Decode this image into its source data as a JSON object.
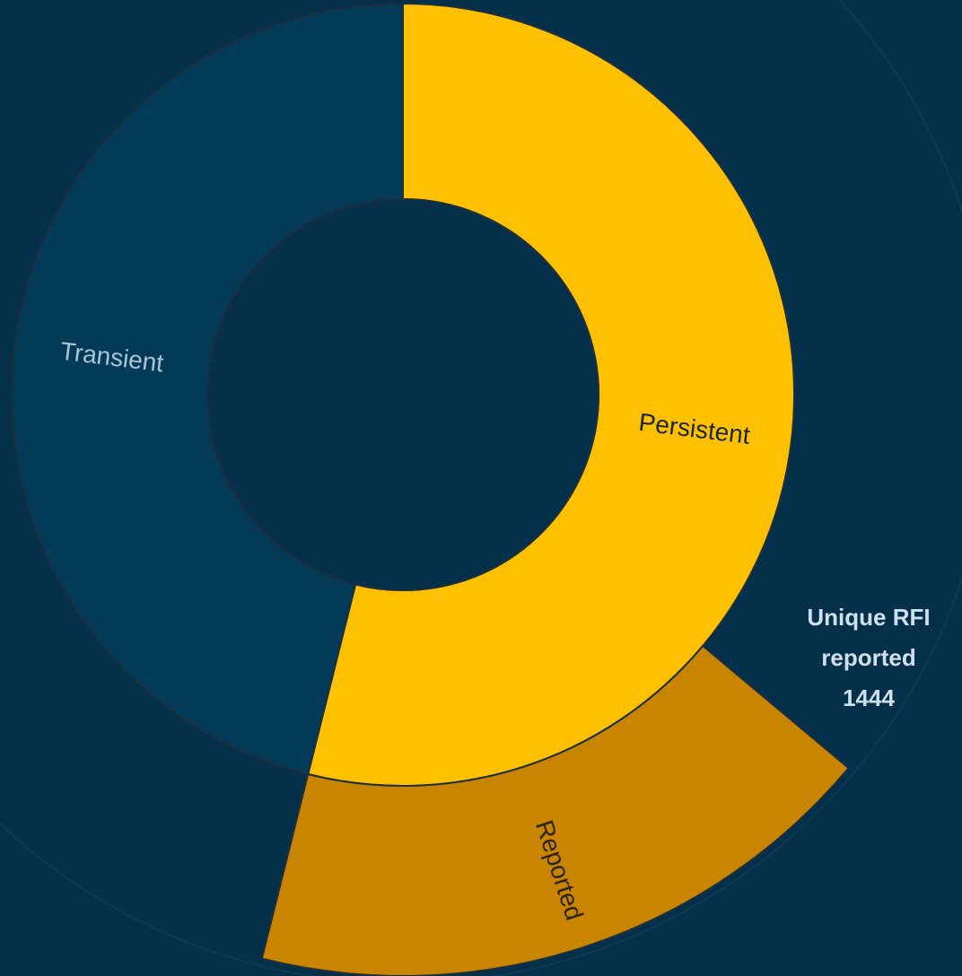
{
  "chart_data": {
    "type": "sunburst",
    "segments": [
      {
        "name": "Persistent",
        "value": 53.9,
        "color": "#ffc000",
        "children": [
          {
            "name": "Reported",
            "value": 17.8,
            "color": "#c98400"
          }
        ]
      },
      {
        "name": "Transient",
        "value": 46.1,
        "color": "#033a58"
      }
    ],
    "annotation": [
      "Unique RFI",
      "reported",
      "1444"
    ]
  }
}
